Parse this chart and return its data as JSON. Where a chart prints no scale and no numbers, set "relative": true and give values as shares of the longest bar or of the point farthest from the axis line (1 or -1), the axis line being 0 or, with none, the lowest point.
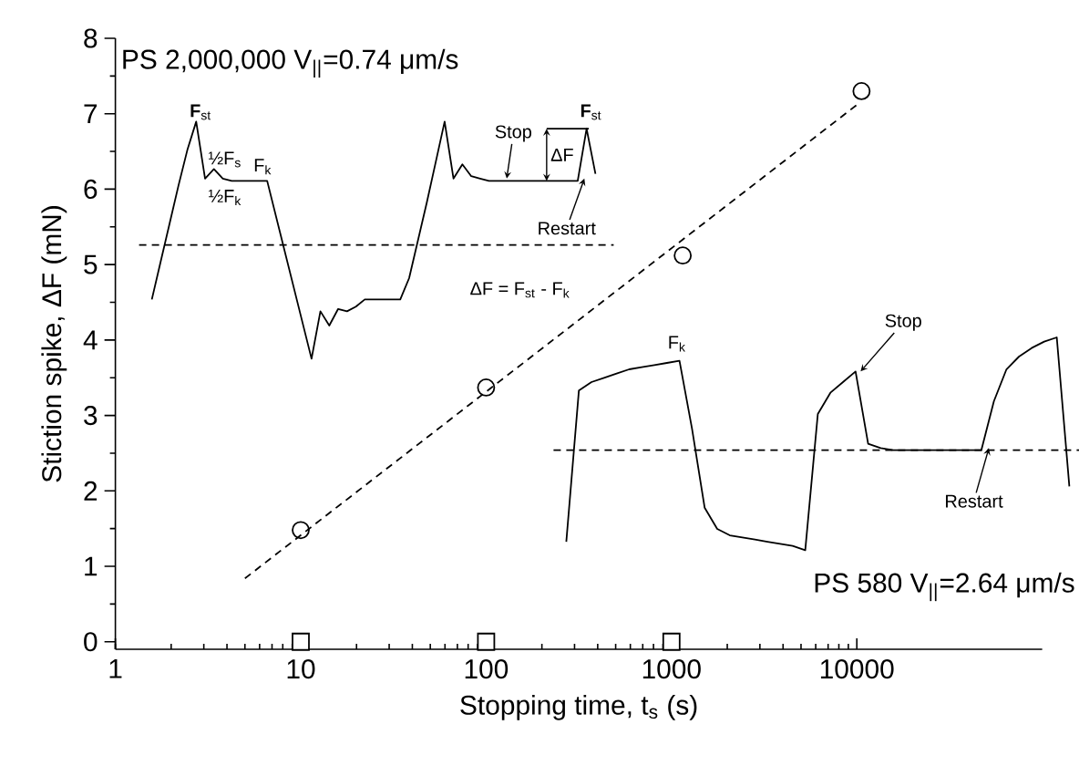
{
  "chart_data": [
    {
      "type": "scatter",
      "xlabel": "Stopping time, t$_{s}$ (s)",
      "ylabel": "Stiction spike,  ΔF (mN)",
      "log": "x",
      "xlim": [
        1,
        100000
      ],
      "xticks": [
        1,
        10,
        100,
        1000,
        10000
      ],
      "ylim": [
        -0.1,
        8
      ],
      "yticks": [
        0,
        1,
        2,
        3,
        4,
        5,
        6,
        7,
        8
      ],
      "series": [
        {
          "type": "line",
          "color": "#000000",
          "marker": "none",
          "line_style": "dashed",
          "x": [
            5,
            10400
          ],
          "values": [
            0.84,
            7.15
          ]
        },
        {
          "type": "scatter",
          "color": "#000000",
          "marker": "circle",
          "x": [
            10,
            100,
            1150,
            10600
          ],
          "values": [
            1.48,
            3.37,
            5.12,
            7.3
          ]
        },
        {
          "type": "scatter",
          "color": "#000000",
          "marker": "square",
          "x": [
            10,
            100,
            1000
          ],
          "values": [
            0,
            0,
            0
          ]
        }
      ]
    },
    {
      "type": "line",
      "relative": true,
      "tick_labels": false,
      "title": "PS 2,000,000   V$_{||}$=0.74 μm/s",
      "categories": [
        null,
        null,
        null,
        null,
        null,
        null,
        null,
        null,
        null,
        null,
        null,
        null,
        null,
        null,
        null,
        null,
        null,
        null,
        null,
        null,
        null,
        null,
        null,
        null,
        null,
        null,
        null,
        null,
        null,
        null,
        null,
        null,
        null,
        null,
        null,
        null,
        null,
        null,
        null,
        null,
        null,
        null,
        null,
        null,
        null,
        null,
        null,
        null,
        null,
        null,
        null
      ],
      "series": [
        {
          "color": "#000000",
          "line_style": "solid",
          "values": [
            0.25,
            0.41,
            0.57,
            0.73,
            0.88,
            1.0,
            0.76,
            0.8,
            0.76,
            0.75,
            0.75,
            0.75,
            0.75,
            0.75,
            0.6,
            0.45,
            0.3,
            0.15,
            0,
            0.2,
            0.14,
            0.21,
            0.2,
            0.22,
            0.25,
            0.25,
            0.25,
            0.25,
            0.25,
            0.34,
            0.5,
            0.66,
            0.83,
            1.0,
            0.76,
            0.82,
            0.77,
            0.76,
            0.75,
            0.75,
            0.75,
            0.75,
            0.75,
            0.75,
            0.75,
            0.75,
            0.75,
            0.75,
            0.75,
            0.97,
            0.78
          ]
        }
      ],
      "ref_lines": [
        {
          "axis": "y",
          "value": 0.48,
          "line_style": "dashed"
        }
      ],
      "annotations": [
        "**F**$_{st}$",
        "½F$_{s}$",
        "F$_{k}$",
        "½F$_{k}$",
        "Stop",
        "ΔF",
        "**F**$_{st}$",
        "Restart",
        "ΔF = F$_{st}$ - F$_{k}$"
      ]
    },
    {
      "type": "line",
      "relative": true,
      "tick_labels": false,
      "title": "PS 580  V$_{||}$=2.64 μm/s",
      "categories": [
        null,
        null,
        null,
        null,
        null,
        null,
        null,
        null,
        null,
        null,
        null,
        null,
        null,
        null,
        null,
        null,
        null,
        null,
        null,
        null,
        null,
        null,
        null,
        null,
        null,
        null,
        null,
        null,
        null,
        null,
        null,
        null,
        null,
        null,
        null,
        null,
        null,
        null,
        null,
        null,
        null
      ],
      "series": [
        {
          "color": "#000000",
          "line_style": "solid",
          "values": [
            0.04,
            0.75,
            0.79,
            0.81,
            0.83,
            0.85,
            0.86,
            0.87,
            0.88,
            0.89,
            0.57,
            0.2,
            0.1,
            0.07,
            0.06,
            0.05,
            0.04,
            0.03,
            0.02,
            0,
            0.64,
            0.74,
            0.79,
            0.84,
            0.5,
            0.48,
            0.47,
            0.47,
            0.47,
            0.47,
            0.47,
            0.47,
            0.47,
            0.47,
            0.7,
            0.85,
            0.91,
            0.95,
            0.98,
            1.0,
            0.3
          ]
        }
      ],
      "ref_lines": [
        {
          "axis": "y",
          "value": 0.47,
          "line_style": "dashed"
        }
      ],
      "annotations": [
        "F$_{k}$",
        "Stop",
        "Restart"
      ]
    }
  ]
}
